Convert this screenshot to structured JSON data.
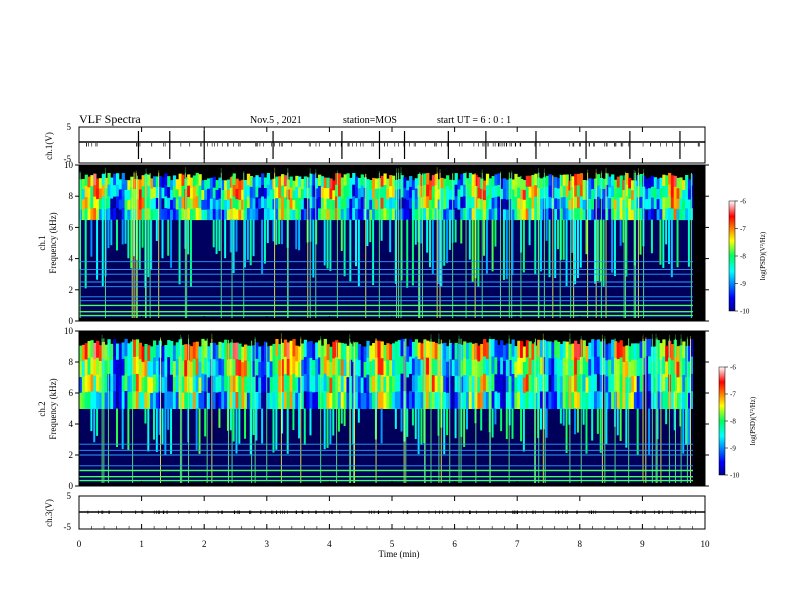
{
  "header": {
    "title": "VLF Spectra",
    "date": "Nov.5 , 2021",
    "station": "station=MOS",
    "start": "start UT = 6 : 0 : 1"
  },
  "chart_data": [
    {
      "type": "line",
      "panel": "ch1-waveform",
      "ylabel": "ch.1(V)",
      "ylim": [
        -5,
        5
      ],
      "yticks": [
        "5",
        "-5"
      ],
      "xlim": [
        0,
        10
      ],
      "level": 0,
      "markers": [
        0.95,
        1.45,
        2.0,
        3.1,
        4.2,
        4.8,
        5.2,
        5.9,
        6.5,
        7.3,
        8.1,
        8.8,
        9.6
      ]
    },
    {
      "type": "heatmap",
      "panel": "ch1-spectrogram",
      "ylabel_line1": "ch.1",
      "ylabel_line2": "Frequency (kHz)",
      "ylim": [
        0,
        10
      ],
      "yticks": [
        "0",
        "2",
        "4",
        "6",
        "8",
        "10"
      ],
      "xlim": [
        0,
        10
      ],
      "band_kHz": [
        6.5,
        9.5
      ],
      "lines_kHz": [
        0.35,
        0.6,
        1.0,
        1.3,
        1.55,
        2.2,
        2.5,
        3.0,
        3.3,
        3.8
      ],
      "colorbar": {
        "label": "log(PSD)(V²/Hz)",
        "ticks": [
          "-6",
          "-7",
          "-8",
          "-9",
          "-10"
        ],
        "range": [
          -10,
          -6
        ]
      }
    },
    {
      "type": "heatmap",
      "panel": "ch2-spectrogram",
      "ylabel_line1": "ch.2",
      "ylabel_line2": "Frequency (kHz)",
      "ylim": [
        0,
        10
      ],
      "yticks": [
        "0",
        "2",
        "4",
        "6",
        "8",
        "10"
      ],
      "xlim": [
        0,
        10
      ],
      "band_kHz": [
        5.0,
        9.5
      ],
      "lines_kHz": [
        0.35,
        0.6,
        1.0,
        1.3,
        2.0,
        2.3,
        2.7
      ],
      "colorbar": {
        "label": "log(PSD)(V²/Hz)",
        "ticks": [
          "-6",
          "-7",
          "-8",
          "-9",
          "-10"
        ],
        "range": [
          -10,
          -6
        ]
      }
    },
    {
      "type": "line",
      "panel": "ch3-waveform",
      "ylabel": "ch.3(V)",
      "ylim": [
        -5,
        5
      ],
      "yticks": [
        "5",
        "-5"
      ],
      "xlim": [
        0,
        10
      ],
      "level": 0,
      "markers": []
    }
  ],
  "xaxis": {
    "label": "Time (min)",
    "ticks": [
      "0",
      "1",
      "2",
      "3",
      "4",
      "5",
      "6",
      "7",
      "8",
      "9",
      "10"
    ]
  },
  "colors": {
    "background": "#ffffff",
    "ink": "#000000"
  }
}
